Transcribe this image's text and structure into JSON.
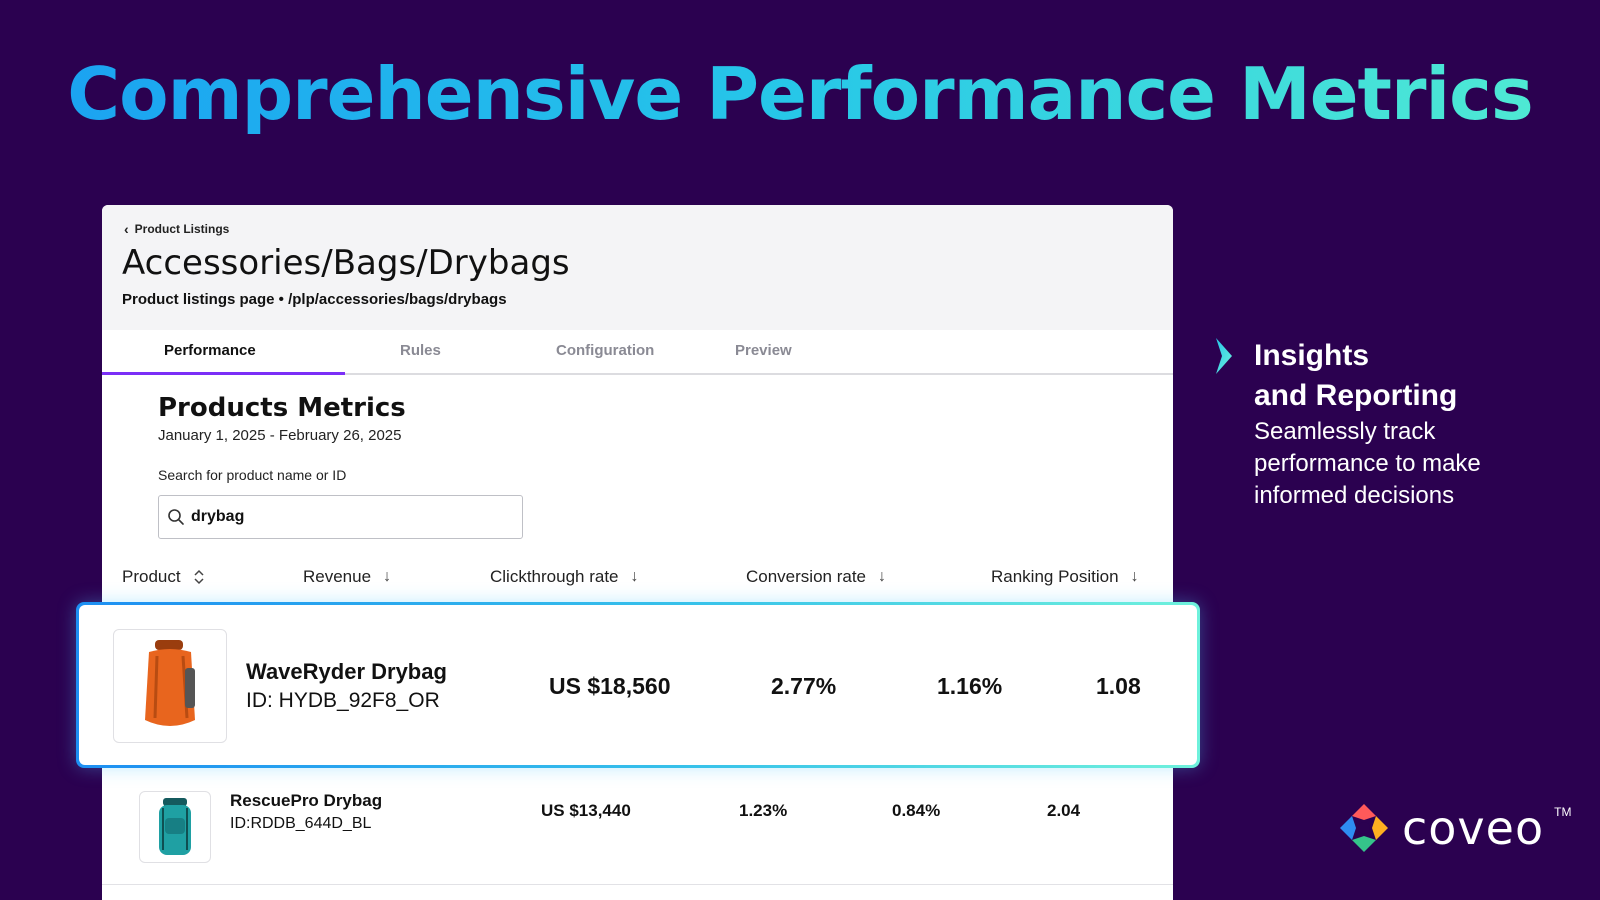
{
  "headline": "Comprehensive Performance Metrics",
  "card": {
    "breadcrumb": "Product Listings",
    "title": "Accessories/Bags/Drybags",
    "subtitle": "Product listings page • /plp/accessories/bags/drybags",
    "tabs": [
      {
        "label": "Performance",
        "active": true
      },
      {
        "label": "Rules",
        "active": false
      },
      {
        "label": "Configuration",
        "active": false
      },
      {
        "label": "Preview",
        "active": false
      }
    ],
    "metrics": {
      "title": "Products Metrics",
      "date_range": "January 1, 2025 - February 26, 2025",
      "search_label": "Search for product name or ID",
      "search_value": "drybag"
    },
    "columns": [
      "Product",
      "Revenue",
      "Clickthrough rate",
      "Conversion rate",
      "Ranking Position"
    ],
    "rows": [
      {
        "name": "WaveRyder Drybag",
        "id": "ID: HYDB_92F8_OR",
        "revenue": "US $18,560",
        "ctr": "2.77%",
        "conversion": "1.16%",
        "ranking": "1.08",
        "highlighted": true,
        "color": "#e8651e"
      },
      {
        "name": "RescuePro Drybag",
        "id": "ID:RDDB_644D_BL",
        "revenue": "US $13,440",
        "ctr": "1.23%",
        "conversion": "0.84%",
        "ranking": "2.04",
        "highlighted": false,
        "color": "#1fa0a3"
      }
    ]
  },
  "side": {
    "title_line1": "Insights",
    "title_line2": "and Reporting",
    "description": "Seamlessly track performance to make informed decisions"
  },
  "logo": {
    "text": "coveo",
    "tm": "TM"
  },
  "colors": {
    "background": "#2b0150",
    "accent": "#7b2ff7",
    "highlight": "#37c2ea"
  }
}
